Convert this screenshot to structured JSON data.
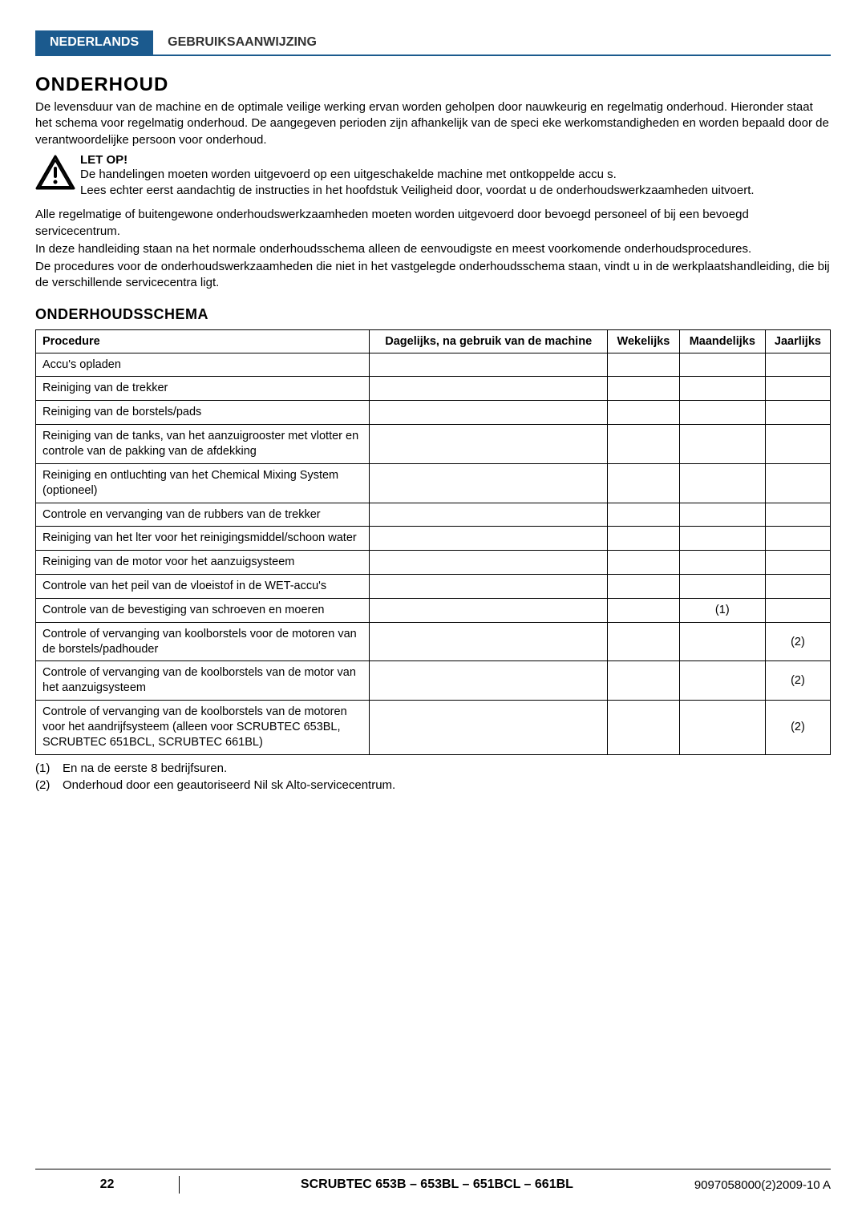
{
  "header": {
    "tab_active": "NEDERLANDS",
    "tab_label": "GEBRUIKSAANWIJZING"
  },
  "title": "ONDERHOUD",
  "intro": "De levensduur van de machine en de optimale veilige werking ervan worden geholpen door nauwkeurig en regelmatig onderhoud. Hieronder staat het schema voor regelmatig onderhoud. De aangegeven perioden zijn afhankelijk van de speci eke werkomstandigheden en worden bepaald door de verantwoordelijke persoon voor onderhoud.",
  "warning": {
    "title": "LET OP!",
    "line1": "De handelingen moeten worden uitgevoerd op een uitgeschakelde machine met ontkoppelde accu s.",
    "line2": "Lees echter eerst aandachtig de instructies in het hoofdstuk Veiligheid door, voordat u de onderhoudswerkzaamheden uitvoert."
  },
  "para1": "Alle regelmatige of buitengewone onderhoudswerkzaamheden moeten worden uitgevoerd door bevoegd personeel of bij een bevoegd servicecentrum.",
  "para2": "In deze handleiding staan na het normale onderhoudsschema alleen de eenvoudigste en meest voorkomende onderhoudsprocedures.",
  "para3": "De procedures voor de onderhoudswerkzaamheden die niet in het vastgelegde onderhoudsschema staan, vindt u in de werkplaatshandleiding, die bij de verschillende servicecentra ligt.",
  "schedule_title": "ONDERHOUDSSCHEMA",
  "table": {
    "headers": {
      "procedure": "Procedure",
      "daily": "Dagelijks, na gebruik van de machine",
      "weekly": "Wekelijks",
      "monthly": "Maandelijks",
      "yearly": "Jaarlijks"
    },
    "rows": [
      {
        "proc": "Accu's opladen",
        "daily": "",
        "weekly": "",
        "monthly": "",
        "yearly": ""
      },
      {
        "proc": "Reiniging van de trekker",
        "daily": "",
        "weekly": "",
        "monthly": "",
        "yearly": ""
      },
      {
        "proc": "Reiniging van de borstels/pads",
        "daily": "",
        "weekly": "",
        "monthly": "",
        "yearly": ""
      },
      {
        "proc": "Reiniging van de tanks, van het aanzuigrooster met vlotter en controle van de pakking van de afdekking",
        "daily": "",
        "weekly": "",
        "monthly": "",
        "yearly": ""
      },
      {
        "proc": "Reiniging en ontluchting van het Chemical Mixing System (optioneel)",
        "daily": "",
        "weekly": "",
        "monthly": "",
        "yearly": ""
      },
      {
        "proc": "Controle en vervanging van de rubbers van de trekker",
        "daily": "",
        "weekly": "",
        "monthly": "",
        "yearly": ""
      },
      {
        "proc": "Reiniging van het  lter voor het reinigingsmiddel/schoon water",
        "daily": "",
        "weekly": "",
        "monthly": "",
        "yearly": ""
      },
      {
        "proc": "Reiniging van de motor voor het aanzuigsysteem",
        "daily": "",
        "weekly": "",
        "monthly": "",
        "yearly": ""
      },
      {
        "proc": "Controle van het peil van de vloeistof in de WET-accu's",
        "daily": "",
        "weekly": "",
        "monthly": "",
        "yearly": ""
      },
      {
        "proc": "Controle van de bevestiging van schroeven en moeren",
        "daily": "",
        "weekly": "",
        "monthly": "(1)",
        "yearly": ""
      },
      {
        "proc": "Controle of vervanging van koolborstels voor de motoren van de borstels/padhouder",
        "daily": "",
        "weekly": "",
        "monthly": "",
        "yearly": "(2)"
      },
      {
        "proc": "Controle of vervanging van de koolborstels van de motor van het aanzuigsysteem",
        "daily": "",
        "weekly": "",
        "monthly": "",
        "yearly": "(2)"
      },
      {
        "proc": "Controle of vervanging van de koolborstels van de motoren voor het aandrijfsysteem (alleen voor SCRUBTEC 653BL, SCRUBTEC 651BCL, SCRUBTEC 661BL)",
        "daily": "",
        "weekly": "",
        "monthly": "",
        "yearly": "(2)"
      }
    ]
  },
  "notes": {
    "n1_num": "(1)",
    "n1_text": "En na de eerste 8 bedrijfsuren.",
    "n2_num": "(2)",
    "n2_text": "Onderhoud door een geautoriseerd Nil sk Alto-servicecentrum."
  },
  "footer": {
    "page": "22",
    "title": "SCRUBTEC 653B – 653BL – 651BCL – 661BL",
    "code": "9097058000(2)2009-10 A"
  },
  "colors": {
    "tab_bg": "#1b5a8e",
    "text": "#000000",
    "border": "#000000"
  }
}
